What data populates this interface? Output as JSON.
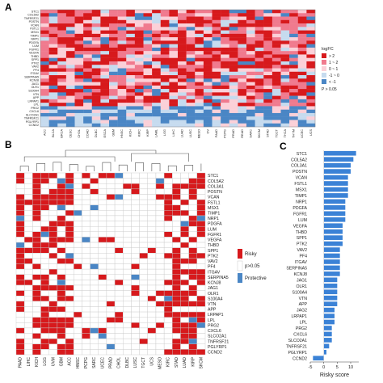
{
  "panels": {
    "a": "A",
    "b": "B",
    "c": "C"
  },
  "panel_a": {
    "legend_title": "logFC",
    "legend_items": [
      {
        "label": "> 2",
        "color": "#d7191c"
      },
      {
        "label": "1 ~ 2",
        "color": "#f07a8e"
      },
      {
        "label": "0 ~ 1",
        "color": "#fbd0d8"
      },
      {
        "label": "-1 ~ 0",
        "color": "#c6dbef"
      },
      {
        "label": "< -1",
        "color": "#4a86c5"
      }
    ],
    "p_label": "P > 0.05",
    "row_labels": [
      "STC1",
      "COL5A2",
      "TNFRSF21",
      "POSTN",
      "VCAN",
      "FSTL1",
      "MSX1",
      "TIMP1",
      "NRP1",
      "PDGFA",
      "LUM",
      "FGFR1",
      "VEGFA",
      "THBD",
      "SPP1",
      "PTK2",
      "VAV2",
      "PF4",
      "ITGAV",
      "SERPINA5",
      "KCNJ8",
      "JAG1",
      "OLR1",
      "S100A4",
      "VTN",
      "APP",
      "LRPAP1",
      "LPL",
      "PRG2",
      "CXCL6",
      "SLCO2A1",
      "TNFRSF21",
      "PGLYRP1",
      "CCND2"
    ],
    "col_labels": [
      "ACC",
      "BLCA",
      "BRCA",
      "CESC",
      "CHOL",
      "COAD",
      "DLBC",
      "ESCA",
      "GBM",
      "HNSC",
      "KICH",
      "KIRC",
      "KIRP",
      "LAML",
      "LGG",
      "LIHC",
      "LUAD",
      "LUSC",
      "MESO",
      "OV",
      "PAAD",
      "PCPG",
      "PRAD",
      "READ",
      "SARC",
      "SKCM",
      "STAD",
      "TGCT",
      "THCA",
      "THYM",
      "UCEC",
      "UCS"
    ]
  },
  "panel_b": {
    "legend_items": [
      {
        "label": "Risky",
        "color": "#d7191c"
      },
      {
        "label": "p>0.05",
        "color": "#ffffff"
      },
      {
        "label": "Protective",
        "color": "#4a86c5"
      }
    ],
    "rows": [
      "STC1",
      "COL5A2",
      "COL3A1",
      "POSTN",
      "VCAN",
      "FSTL1",
      "MSX1",
      "TIMP1",
      "NRP1",
      "PDGFA",
      "LUM",
      "FGFR1",
      "VEGFA",
      "THBD",
      "SPP1",
      "PTK2",
      "VAV2",
      "PF4",
      "ITGAV",
      "SERPINA5",
      "KCNJ8",
      "JAG1",
      "OLR1",
      "S100A4",
      "VTN",
      "APP",
      "LRPAP1",
      "LPL",
      "PRG2",
      "CXCL6",
      "SLCO2A1",
      "TNFRSF21",
      "PGLYRP1",
      "CCND2"
    ],
    "cols": [
      "PAAD",
      "LIHC",
      "KICH",
      "LGG",
      "UVM",
      "GBM",
      "ACC",
      "HNSC",
      "PCPG",
      "SARC",
      "UCEC",
      "PRAD",
      "CHOL",
      "DLBC",
      "LUSC",
      "TGCT",
      "UCS",
      "MESO",
      "KIRC",
      "STAD",
      "LUAD",
      "KIRP",
      "SKCM"
    ]
  },
  "chart_data": {
    "type": "bar",
    "orientation": "horizontal",
    "xlabel": "Risky score",
    "categories": [
      "STC1",
      "COL5A2",
      "COL3A1",
      "POSTN",
      "VCAN",
      "FSTL1",
      "MSX1",
      "TIMP1",
      "NRP1",
      "PDGFA",
      "FGFR1",
      "LUM",
      "VEGFA",
      "THBD",
      "SPP1",
      "PTK2",
      "VAV2",
      "PF4",
      "ITGAV",
      "SERPINA5",
      "KCNJ8",
      "JAG1",
      "OLR1",
      "S100A4",
      "VTN",
      "APP",
      "JAG2",
      "LRPAP1",
      "LPL",
      "PRG2",
      "CXCL6",
      "SLCO2A1",
      "TNFRSF21",
      "PGLYRP1",
      "CCND2"
    ],
    "values": [
      12,
      11,
      10,
      10,
      9,
      9,
      9,
      9,
      8,
      8,
      8,
      8,
      7,
      7,
      7,
      7,
      6,
      6,
      6,
      6,
      6,
      5,
      5,
      5,
      5,
      5,
      4,
      4,
      4,
      3,
      3,
      3,
      2,
      1,
      -4
    ],
    "xticks": [
      "-5",
      "0",
      "5",
      "10"
    ],
    "xlim": [
      -5,
      13
    ],
    "bar_color": "#3b82d6"
  }
}
